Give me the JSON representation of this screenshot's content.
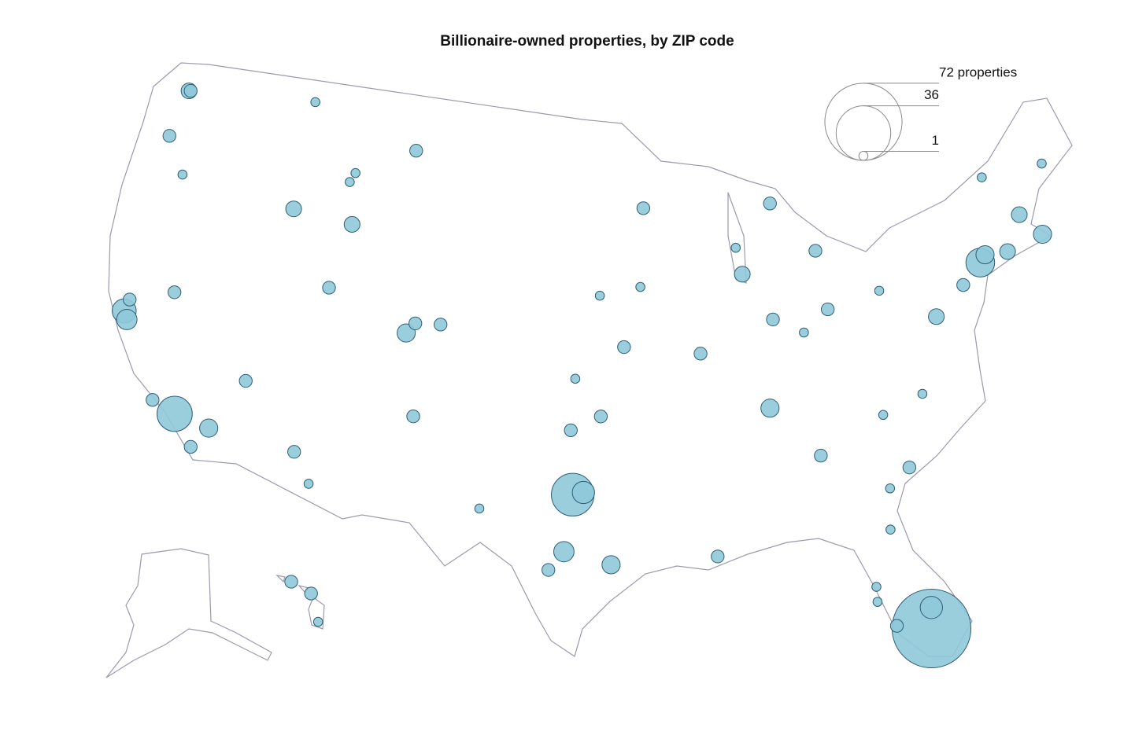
{
  "chart_data": {
    "type": "bubble_map",
    "title": "Billionaire-owned properties, by ZIP code",
    "size_legend": [
      {
        "value": 72,
        "label": "72 properties"
      },
      {
        "value": 36,
        "label": "36"
      },
      {
        "value": 1,
        "label": "1"
      }
    ],
    "color": "#8fc9d9",
    "points": {
      "lon": [
        -122.3,
        -122.2,
        -122.7,
        -121.3,
        -114.35,
        -110.76,
        -111.04,
        -111.3,
        -114.3,
        -107.5,
        -122.42,
        -122.15,
        -122.3,
        -120.0,
        -118.4,
        -116.5,
        -117.2,
        -119.7,
        -115.1,
        -111.5,
        -106.82,
        -106.37,
        -104.95,
        -105.94,
        -111.9,
        -110.9,
        -97.35,
        -96.8,
        -97.75,
        -95.4,
        -98.5,
        -102.1,
        -97.5,
        -95.9,
        -97.3,
        -94.6,
        -95.95,
        -93.3,
        -93.6,
        -90.35,
        -87.65,
        -87.9,
        -83.25,
        -85.6,
        -86.15,
        -83.0,
        -84.5,
        -86.8,
        -84.4,
        -80.85,
        -78.6,
        -77.05,
        -75.2,
        -73.97,
        -73.6,
        -72.3,
        -71.1,
        -70.1,
        -69.0,
        -72.7,
        -79.95,
        -81.1,
        -81.4,
        -80.04,
        -80.2,
        -81.8,
        -82.5,
        -82.55,
        -90.1,
        -79.95,
        -157.8,
        -156.4,
        -155.9
      ],
      "lat": [
        47.6,
        47.62,
        45.5,
        44.05,
        43.7,
        43.48,
        45.68,
        45.26,
        48.4,
        47.0,
        37.77,
        37.45,
        38.3,
        39.1,
        34.07,
        33.8,
        32.85,
        34.42,
        36.1,
        40.65,
        39.19,
        39.64,
        39.7,
        35.69,
        33.5,
        32.25,
        32.75,
        32.85,
        30.3,
        29.75,
        29.5,
        32.0,
        35.5,
        36.1,
        37.7,
        39.05,
        41.25,
        44.97,
        41.6,
        38.65,
        41.9,
        43.05,
        42.55,
        44.8,
        39.85,
        40.0,
        39.15,
        36.1,
        33.85,
        35.2,
        35.8,
        38.92,
        40.0,
        40.77,
        41.05,
        40.95,
        42.35,
        41.28,
        44.2,
        44.3,
        32.8,
        32.05,
        30.3,
        26.7,
        25.8,
        26.15,
        27.95,
        27.3,
        29.95,
        40.45,
        21.3,
        20.8,
        19.6
      ],
      "count": [
        3,
        2,
        2,
        1,
        3,
        3,
        1,
        1,
        1,
        2,
        7,
        5,
        2,
        2,
        15,
        4,
        2,
        2,
        2,
        2,
        4,
        2,
        2,
        2,
        2,
        1,
        22,
        6,
        5,
        4,
        2,
        1,
        2,
        2,
        1,
        2,
        1,
        2,
        1,
        2,
        3,
        1,
        2,
        2,
        2,
        2,
        1,
        4,
        2,
        1,
        1,
        3,
        2,
        10,
        4,
        3,
        3,
        4,
        1,
        1,
        2,
        1,
        1,
        6,
        75,
        2,
        1,
        1,
        2,
        1,
        2,
        2,
        1
      ]
    }
  }
}
